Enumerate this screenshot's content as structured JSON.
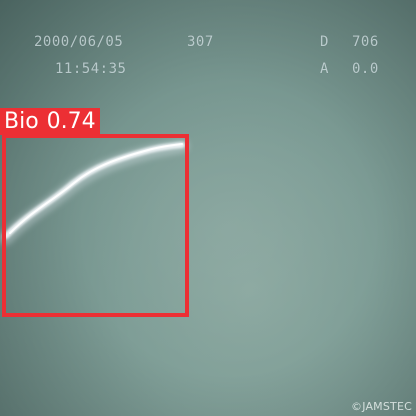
{
  "overlay": {
    "date": "2000/06/05",
    "frame": "307",
    "time": "11:54:35",
    "d_label": "D",
    "d_value": "706",
    "a_label": "A",
    "a_value": "0.0"
  },
  "detection": {
    "label": "Bio",
    "confidence": "0.74",
    "color": "#ec2f34"
  },
  "copyright": "©JAMSTEC",
  "scene": {
    "water_color": "#7f9e97",
    "subject_icon": "white-eel-like-organism"
  }
}
